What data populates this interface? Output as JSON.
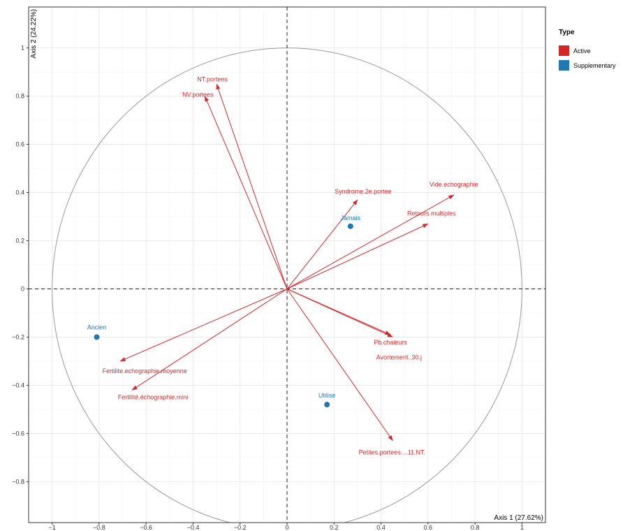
{
  "chart_data": {
    "type": "scatter",
    "subtype": "pca-correlation-circle",
    "xlabel": "Axis 1 (27.62%)",
    "ylabel": "Axis 2 (24.22%)",
    "xlim": [
      -1.1,
      1.1
    ],
    "ylim": [
      -0.97,
      1.17
    ],
    "x_ticks": [
      -1,
      -0.8,
      -0.6,
      -0.4,
      -0.2,
      0,
      0.2,
      0.4,
      0.6,
      0.8,
      1
    ],
    "x_tick_labels": [
      "−1",
      "−0.8",
      "−0.6",
      "−0.4",
      "−0.2",
      "0",
      "0.2",
      "0.4",
      "0.6",
      "0.8",
      "1"
    ],
    "y_ticks": [
      -0.8,
      -0.6,
      -0.4,
      -0.2,
      0,
      0.2,
      0.4,
      0.6,
      0.8,
      1
    ],
    "y_tick_labels": [
      "−0.8",
      "−0.6",
      "−0.4",
      "−0.2",
      "0",
      "0.2",
      "0.4",
      "0.6",
      "0.8",
      "1"
    ],
    "grid": true,
    "unit_circle": true,
    "legend": {
      "title": "Type",
      "position": "right",
      "entries": [
        {
          "label": "Active",
          "color": "#d62728"
        },
        {
          "label": "Supplementary",
          "color": "#1f77b4"
        }
      ]
    },
    "series": [
      {
        "name": "Active",
        "color": "#d62728",
        "style": "arrows",
        "points": [
          {
            "label": "NT.portees",
            "x": -0.3,
            "y": 0.85
          },
          {
            "label": "NV.portees",
            "x": -0.35,
            "y": 0.8
          },
          {
            "label": "Syndrome.2e.portee",
            "x": 0.3,
            "y": 0.37
          },
          {
            "label": "Vide.echographie",
            "x": 0.71,
            "y": 0.39
          },
          {
            "label": "Retours.multiples",
            "x": 0.6,
            "y": 0.27
          },
          {
            "label": "Pb.chaleurs",
            "x": 0.44,
            "y": -0.19
          },
          {
            "label": "Avortement..30.j",
            "x": 0.45,
            "y": -0.2
          },
          {
            "label": "Petites.portees....11.NT.",
            "x": 0.45,
            "y": -0.63
          },
          {
            "label": "Fertilite.echographie.moyenne",
            "x": -0.71,
            "y": -0.3
          },
          {
            "label": "Fertilité.échographie.mini",
            "x": -0.66,
            "y": -0.42
          }
        ]
      },
      {
        "name": "Supplementary",
        "color": "#1f77b4",
        "style": "points",
        "points": [
          {
            "label": "Jamais",
            "x": 0.27,
            "y": 0.26
          },
          {
            "label": "Ancien",
            "x": -0.81,
            "y": -0.2
          },
          {
            "label": "Utilise",
            "x": 0.17,
            "y": -0.48
          }
        ]
      }
    ]
  }
}
